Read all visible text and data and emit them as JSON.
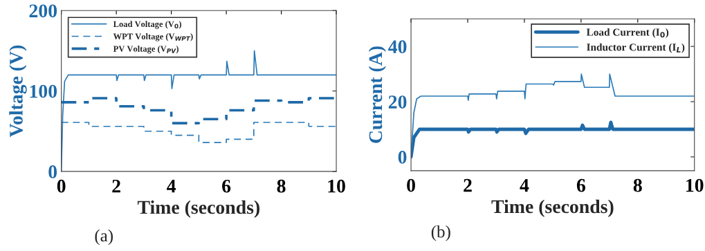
{
  "chart_data": [
    {
      "type": "line",
      "xlabel": "Time (seconds)",
      "ylabel": "Voltage (V)",
      "xlim": [
        0,
        10
      ],
      "xticks": [
        0,
        2,
        4,
        6,
        8,
        10
      ],
      "ylim": [
        0,
        200
      ],
      "yticks": [
        0,
        100,
        200
      ],
      "grid": false,
      "legend": "top left",
      "annotations": [
        "(a)"
      ],
      "series": [
        {
          "name": "Load Voltage (V$_{0}$)",
          "color": "#2a7ab8",
          "line_style": "solid",
          "x": [
            0,
            0.05,
            0.12,
            0.25,
            2,
            2.02,
            2.08,
            3,
            3.02,
            3.08,
            4,
            4.02,
            4.1,
            5,
            5.02,
            5.08,
            6,
            6.02,
            6.1,
            7,
            7.02,
            7.12,
            10
          ],
          "values": [
            0,
            70,
            112,
            120,
            120,
            113,
            120,
            120,
            113,
            120,
            120,
            103,
            120,
            120,
            115,
            120,
            120,
            137,
            120,
            120,
            150,
            120,
            120
          ]
        },
        {
          "name": "WPT Voltage (V$_{WPT}$)",
          "color": "#2a7ab8",
          "line_style": "dashed",
          "x": [
            0,
            1,
            1,
            3,
            3,
            4,
            4,
            5,
            5,
            6,
            6,
            7,
            7,
            9,
            9,
            10
          ],
          "values": [
            61,
            61,
            56,
            56,
            50,
            50,
            45,
            45,
            36,
            36,
            40,
            40,
            61,
            61,
            56,
            56
          ]
        },
        {
          "name": "PV Voltage (V$_{PV}$)",
          "color": "#1f6aa8",
          "line_style": "dashdot",
          "x": [
            0,
            1,
            1,
            2,
            2,
            3,
            3,
            4,
            4,
            5,
            5,
            6,
            6,
            7,
            7,
            8,
            8,
            9,
            9,
            10
          ],
          "values": [
            86,
            86,
            91,
            91,
            81,
            81,
            76,
            76,
            60,
            60,
            65,
            65,
            76,
            76,
            88,
            88,
            86,
            86,
            91,
            91
          ]
        }
      ]
    },
    {
      "type": "line",
      "xlabel": "Time (seconds)",
      "ylabel": "Current (A)",
      "xlim": [
        0,
        10
      ],
      "xticks": [
        0,
        2,
        4,
        6,
        8,
        10
      ],
      "ylim": [
        -5,
        50
      ],
      "yticks": [
        0,
        20,
        40
      ],
      "grid": false,
      "legend": "top right",
      "annotations": [
        "(b)"
      ],
      "series": [
        {
          "name": "Load Current (I$_{0}$)",
          "color": "#1f6aa8",
          "line_style": "solid",
          "x": [
            0,
            0.1,
            0.3,
            2,
            2.03,
            2.1,
            3,
            3.03,
            3.1,
            4,
            4.05,
            4.15,
            6,
            6.05,
            6.12,
            7,
            7.05,
            7.12,
            10
          ],
          "values": [
            0,
            7,
            10,
            10,
            9,
            10,
            10,
            9,
            10,
            10,
            8.5,
            10,
            10,
            11.5,
            10,
            10,
            12.5,
            10,
            10
          ]
        },
        {
          "name": "Inductor Current (I$_{L}$)",
          "color": "#2a7ab8",
          "line_style": "solid",
          "x": [
            0,
            0.1,
            0.2,
            0.35,
            2,
            2.02,
            2.05,
            3,
            3.02,
            3.06,
            4,
            4.02,
            4.06,
            5,
            5.03,
            5.08,
            6,
            6.01,
            6.12,
            7,
            7.01,
            7.2,
            10
          ],
          "values": [
            0,
            16,
            21,
            22,
            22,
            20.5,
            22.8,
            22.8,
            21,
            23.8,
            23.8,
            21,
            26.4,
            26.4,
            26,
            27.3,
            27.3,
            30,
            25.2,
            25.2,
            30,
            22,
            22
          ]
        }
      ]
    }
  ]
}
